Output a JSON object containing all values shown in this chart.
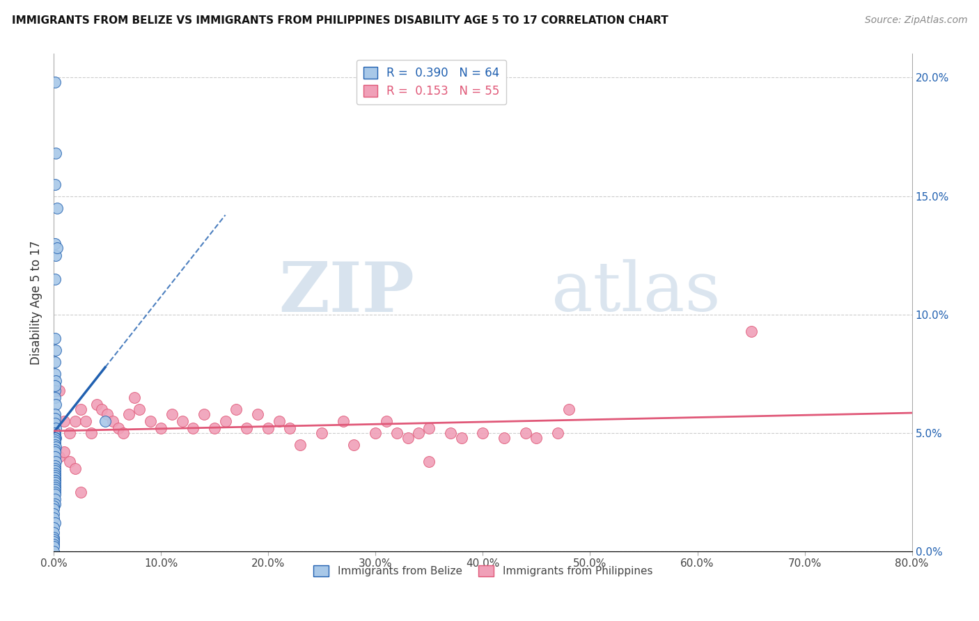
{
  "title": "IMMIGRANTS FROM BELIZE VS IMMIGRANTS FROM PHILIPPINES DISABILITY AGE 5 TO 17 CORRELATION CHART",
  "source": "Source: ZipAtlas.com",
  "ylabel": "Disability Age 5 to 17",
  "xlim": [
    0.0,
    0.8
  ],
  "ylim": [
    0.0,
    0.21
  ],
  "xticks": [
    0.0,
    0.1,
    0.2,
    0.3,
    0.4,
    0.5,
    0.6,
    0.7,
    0.8
  ],
  "xticklabels": [
    "0.0%",
    "10.0%",
    "20.0%",
    "30.0%",
    "40.0%",
    "50.0%",
    "60.0%",
    "70.0%",
    "80.0%"
  ],
  "yticks": [
    0.0,
    0.05,
    0.1,
    0.15,
    0.2
  ],
  "yticklabels": [
    "0.0%",
    "5.0%",
    "10.0%",
    "15.0%",
    "20.0%"
  ],
  "belize_color": "#a8c8e8",
  "philippines_color": "#f0a0b8",
  "belize_line_color": "#2060b0",
  "philippines_line_color": "#e05878",
  "belize_R": 0.39,
  "belize_N": 64,
  "philippines_R": 0.153,
  "philippines_N": 55,
  "watermark_zip": "ZIP",
  "watermark_atlas": "atlas",
  "background_color": "#ffffff",
  "grid_color": "#cccccc",
  "belize_scatter_x": [
    0.001,
    0.002,
    0.001,
    0.003,
    0.001,
    0.002,
    0.001,
    0.003,
    0.001,
    0.002,
    0.001,
    0.001,
    0.002,
    0.001,
    0.001,
    0.002,
    0.001,
    0.001,
    0.001,
    0.002,
    0.001,
    0.001,
    0.001,
    0.002,
    0.001,
    0.001,
    0.001,
    0.001,
    0.002,
    0.001,
    0.001,
    0.001,
    0.001,
    0.002,
    0.001,
    0.001,
    0.001,
    0.001,
    0.001,
    0.001,
    0.001,
    0.001,
    0.001,
    0.001,
    0.001,
    0.001,
    0.001,
    0.001,
    0.001,
    0.001,
    0.0,
    0.0,
    0.0,
    0.0,
    0.001,
    0.0,
    0.0,
    0.0,
    0.0,
    0.0,
    0.0,
    0.0,
    0.0,
    0.048
  ],
  "belize_scatter_y": [
    0.198,
    0.168,
    0.155,
    0.145,
    0.13,
    0.125,
    0.115,
    0.128,
    0.09,
    0.085,
    0.08,
    0.075,
    0.072,
    0.068,
    0.065,
    0.062,
    0.058,
    0.056,
    0.054,
    0.052,
    0.05,
    0.05,
    0.049,
    0.048,
    0.048,
    0.047,
    0.046,
    0.045,
    0.044,
    0.043,
    0.07,
    0.042,
    0.04,
    0.038,
    0.036,
    0.035,
    0.034,
    0.033,
    0.032,
    0.031,
    0.03,
    0.03,
    0.029,
    0.028,
    0.027,
    0.026,
    0.025,
    0.024,
    0.022,
    0.02,
    0.019,
    0.018,
    0.016,
    0.014,
    0.012,
    0.01,
    0.008,
    0.006,
    0.005,
    0.004,
    0.003,
    0.002,
    0.0,
    0.055
  ],
  "philippines_scatter_x": [
    0.005,
    0.01,
    0.015,
    0.02,
    0.025,
    0.03,
    0.035,
    0.04,
    0.045,
    0.05,
    0.055,
    0.06,
    0.065,
    0.07,
    0.075,
    0.08,
    0.09,
    0.1,
    0.11,
    0.12,
    0.13,
    0.14,
    0.15,
    0.16,
    0.17,
    0.18,
    0.19,
    0.2,
    0.21,
    0.22,
    0.23,
    0.25,
    0.27,
    0.28,
    0.3,
    0.31,
    0.32,
    0.33,
    0.34,
    0.35,
    0.37,
    0.38,
    0.4,
    0.42,
    0.44,
    0.45,
    0.47,
    0.48,
    0.005,
    0.01,
    0.015,
    0.02,
    0.025,
    0.65,
    0.35
  ],
  "philippines_scatter_y": [
    0.068,
    0.055,
    0.05,
    0.055,
    0.06,
    0.055,
    0.05,
    0.062,
    0.06,
    0.058,
    0.055,
    0.052,
    0.05,
    0.058,
    0.065,
    0.06,
    0.055,
    0.052,
    0.058,
    0.055,
    0.052,
    0.058,
    0.052,
    0.055,
    0.06,
    0.052,
    0.058,
    0.052,
    0.055,
    0.052,
    0.045,
    0.05,
    0.055,
    0.045,
    0.05,
    0.055,
    0.05,
    0.048,
    0.05,
    0.052,
    0.05,
    0.048,
    0.05,
    0.048,
    0.05,
    0.048,
    0.05,
    0.06,
    0.04,
    0.042,
    0.038,
    0.035,
    0.025,
    0.093,
    0.038
  ]
}
